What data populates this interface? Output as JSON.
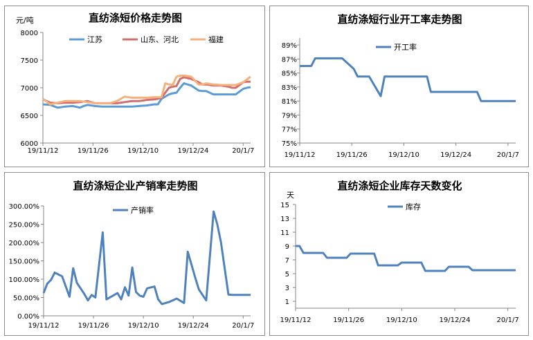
{
  "chart_data": [
    {
      "type": "line",
      "title": "直纺涤短价格走势图",
      "ylabel": "元/吨",
      "ylim": [
        6000,
        8000
      ],
      "yticks": [
        "8000",
        "7500",
        "7000",
        "6500",
        "6000"
      ],
      "xticks": [
        "19/11/12",
        "19/11/26",
        "19/12/10",
        "19/12/24",
        "20/1/7"
      ],
      "x_range": [
        0,
        56
      ],
      "series": [
        {
          "name": "江苏",
          "color": "#5b9bd5",
          "x": [
            0,
            2,
            4,
            6,
            8,
            10,
            11,
            12,
            14,
            16,
            18,
            20,
            22,
            24,
            26,
            28,
            30,
            31,
            32,
            34,
            35,
            36,
            37,
            38,
            40,
            42,
            43,
            44,
            46,
            48,
            50,
            51,
            52,
            54,
            55,
            56
          ],
          "values": [
            6700,
            6690,
            6640,
            6660,
            6670,
            6640,
            6670,
            6690,
            6670,
            6660,
            6660,
            6660,
            6660,
            6660,
            6670,
            6680,
            6700,
            6700,
            6800,
            6880,
            6900,
            6910,
            7000,
            7080,
            7040,
            6950,
            6940,
            6940,
            6880,
            6880,
            6880,
            6880,
            6880,
            6980,
            7000,
            7010
          ]
        },
        {
          "name": "山东、河北",
          "color": "#d06d6d",
          "x": [
            0,
            2,
            4,
            6,
            8,
            10,
            12,
            14,
            16,
            18,
            20,
            22,
            24,
            26,
            28,
            30,
            31,
            32,
            34,
            35,
            36,
            37,
            38,
            40,
            42,
            43,
            44,
            46,
            48,
            50,
            51,
            52,
            54,
            55,
            56
          ],
          "values": [
            6790,
            6730,
            6720,
            6730,
            6730,
            6740,
            6760,
            6720,
            6720,
            6720,
            6720,
            6740,
            6760,
            6760,
            6780,
            6790,
            6800,
            6820,
            7000,
            7020,
            7030,
            7160,
            7190,
            7160,
            7100,
            7060,
            7060,
            7040,
            7040,
            7020,
            7000,
            7000,
            7100,
            7110,
            7110
          ]
        },
        {
          "name": "福建",
          "color": "#f5b07c",
          "x": [
            0,
            2,
            4,
            6,
            8,
            10,
            12,
            14,
            16,
            18,
            20,
            22,
            24,
            26,
            28,
            30,
            31,
            32,
            33,
            34,
            35,
            36,
            37,
            38,
            40,
            42,
            43,
            44,
            46,
            48,
            50,
            51,
            52,
            54,
            55,
            56
          ],
          "values": [
            6800,
            6700,
            6730,
            6760,
            6760,
            6760,
            6740,
            6720,
            6720,
            6720,
            6760,
            6840,
            6820,
            6820,
            6820,
            6830,
            6830,
            6830,
            7080,
            7060,
            7050,
            7200,
            7220,
            7220,
            7200,
            7060,
            7060,
            7080,
            7060,
            7050,
            7050,
            7050,
            7050,
            7100,
            7150,
            7200
          ]
        }
      ]
    },
    {
      "type": "line",
      "title": "直纺涤短行业开工率走势图",
      "ylim": [
        75,
        90
      ],
      "yticks": [
        "89%",
        "87%",
        "85%",
        "83%",
        "81%",
        "79%",
        "77%",
        "75%"
      ],
      "xticks": [
        "19/11/12",
        "19/11/26",
        "19/12/10",
        "19/12/24",
        "20/1/7"
      ],
      "x_range": [
        0,
        56
      ],
      "series": [
        {
          "name": "开工率",
          "color": "#4f81bd",
          "x": [
            0,
            3,
            4,
            11,
            14,
            15,
            18,
            21,
            22,
            33,
            34,
            46,
            47,
            56
          ],
          "values": [
            86.0,
            86.0,
            87.1,
            87.1,
            85.6,
            84.5,
            84.5,
            81.7,
            84.5,
            84.5,
            82.3,
            82.3,
            81.0,
            81.0
          ]
        }
      ]
    },
    {
      "type": "line",
      "title": "直纺涤短企业产销率走势图",
      "ylim": [
        0,
        300
      ],
      "yticks": [
        "300.00%",
        "250.00%",
        "200.00%",
        "150.00%",
        "100.00%",
        "50.00%",
        "0.00%"
      ],
      "xticks": [
        "19/11/12",
        "19/11/26",
        "19/12/10",
        "19/12/24",
        "20/1/7"
      ],
      "x_range": [
        0,
        56
      ],
      "series": [
        {
          "name": "产销率",
          "color": "#4f81bd",
          "x": [
            0,
            1,
            2,
            3,
            5,
            7,
            8,
            9,
            11,
            12,
            13,
            14,
            16,
            17,
            20,
            21,
            22,
            23,
            24,
            25,
            26,
            27,
            28,
            30,
            31,
            32,
            34,
            36,
            38,
            39,
            40,
            41,
            42,
            44,
            46,
            47,
            48,
            50,
            51,
            52,
            54,
            55,
            56
          ],
          "values": [
            62,
            88,
            98,
            118,
            108,
            52,
            130,
            90,
            60,
            42,
            57,
            50,
            228,
            45,
            62,
            45,
            78,
            55,
            132,
            65,
            55,
            52,
            75,
            80,
            45,
            32,
            38,
            47,
            35,
            175,
            140,
            105,
            72,
            42,
            285,
            250,
            200,
            58,
            57,
            57,
            57,
            57,
            57
          ]
        }
      ]
    },
    {
      "type": "line",
      "title": "直纺涤短企业库存天数变化",
      "ylabel": "天",
      "ylim": [
        0,
        15
      ],
      "yticks": [
        "15",
        "13",
        "11",
        "9",
        "7",
        "5",
        "3",
        "1"
      ],
      "xticks": [
        "19/11/12",
        "19/11/26",
        "19/12/10",
        "19/12/24",
        "20/1/7"
      ],
      "x_range": [
        0,
        56
      ],
      "series": [
        {
          "name": "库存",
          "color": "#4f81bd",
          "x": [
            0,
            1,
            2,
            7,
            8,
            13,
            14,
            20,
            21,
            26,
            27,
            32,
            33,
            38,
            39,
            44,
            45,
            56
          ],
          "values": [
            9.0,
            9.0,
            8.0,
            8.0,
            7.3,
            7.3,
            7.9,
            7.9,
            6.2,
            6.2,
            6.6,
            6.6,
            5.4,
            5.4,
            6.0,
            6.0,
            5.5,
            5.5
          ]
        }
      ]
    }
  ]
}
